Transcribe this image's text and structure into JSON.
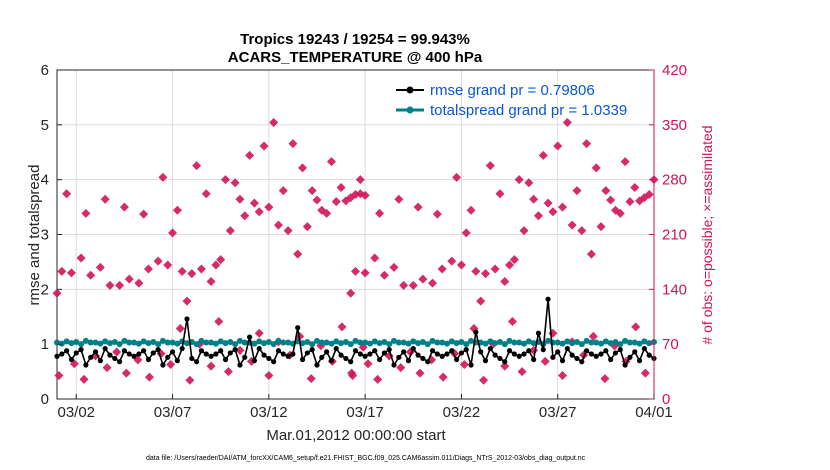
{
  "colors": {
    "rmse": "#000000",
    "spread": "#00808a",
    "obs": "#d1135a",
    "legend_text": "#0a57d0",
    "grid": "#dcdcdc"
  },
  "footer": "data file: /Users/raeder/DAI/ATM_forcXX/CAM6_setup/f.e21.FHIST_BGC.f09_025.CAM6assim.011/Diags_NTrS_2012-03/obs_diag_output.nc",
  "chart_data": {
    "type": "line",
    "title_line1": "Tropics 19243 / 19254 = 99.943%",
    "title_line2": "ACARS_TEMPERATURE @ 400 hPa",
    "xlabel": "Mar.01,2012 00:00:00 start",
    "ylabel": "rmse and totalspread",
    "ylabel_right": "# of obs: o=possible; ×=assimilated",
    "x_range": [
      0,
      31
    ],
    "ylim": [
      0,
      6
    ],
    "ylim_right": [
      0,
      420
    ],
    "x_ticks": [
      {
        "x": 1,
        "label": "03/02"
      },
      {
        "x": 6,
        "label": "03/07"
      },
      {
        "x": 11,
        "label": "03/12"
      },
      {
        "x": 16,
        "label": "03/17"
      },
      {
        "x": 21,
        "label": "03/22"
      },
      {
        "x": 26,
        "label": "03/27"
      },
      {
        "x": 31,
        "label": "04/01"
      }
    ],
    "y_ticks": [
      "0",
      "1",
      "2",
      "3",
      "4",
      "5",
      "6"
    ],
    "y_ticks_right": [
      "0",
      "70",
      "140",
      "210",
      "280",
      "350",
      "420"
    ],
    "legend": [
      {
        "name": "rmse grand pr = 0.79806",
        "color": "#000000"
      },
      {
        "name": "totalspread grand pr = 1.0339",
        "color": "#00808a"
      }
    ],
    "rmse_base": [
      0.78,
      0.82,
      0.88,
      0.72,
      0.84,
      0.9,
      0.62,
      0.76,
      0.86,
      0.7,
      0.92,
      0.8,
      0.74,
      0.68,
      0.88,
      0.82
    ],
    "rmse_spikes": [
      {
        "x": 6.75,
        "y": 1.46
      },
      {
        "x": 10.0,
        "y": 1.13
      },
      {
        "x": 12.5,
        "y": 1.3
      },
      {
        "x": 21.75,
        "y": 1.22
      },
      {
        "x": 25.5,
        "y": 1.82
      },
      {
        "x": 25.0,
        "y": 1.2
      }
    ],
    "spread_base": [
      1.03,
      1.01,
      1.05,
      1.02,
      1.04,
      1.0,
      1.06,
      1.03
    ],
    "obs_counts": [
      {
        "x": 0.0,
        "n": 135
      },
      {
        "x": 0.25,
        "n": 163
      },
      {
        "x": 0.5,
        "n": 262
      },
      {
        "x": 0.75,
        "n": 161
      },
      {
        "x": 1.25,
        "n": 180
      },
      {
        "x": 1.5,
        "n": 237
      },
      {
        "x": 1.75,
        "n": 158
      },
      {
        "x": 2.25,
        "n": 168
      },
      {
        "x": 2.5,
        "n": 255
      },
      {
        "x": 2.75,
        "n": 145
      },
      {
        "x": 3.25,
        "n": 145
      },
      {
        "x": 3.5,
        "n": 245
      },
      {
        "x": 3.75,
        "n": 153
      },
      {
        "x": 4.25,
        "n": 148
      },
      {
        "x": 4.5,
        "n": 236
      },
      {
        "x": 4.75,
        "n": 166
      },
      {
        "x": 5.25,
        "n": 176
      },
      {
        "x": 5.5,
        "n": 283
      },
      {
        "x": 5.75,
        "n": 171
      },
      {
        "x": 6.0,
        "n": 212
      },
      {
        "x": 6.25,
        "n": 241
      },
      {
        "x": 6.5,
        "n": 163
      },
      {
        "x": 6.75,
        "n": 125
      },
      {
        "x": 7.0,
        "n": 160
      },
      {
        "x": 7.25,
        "n": 298
      },
      {
        "x": 7.5,
        "n": 166
      },
      {
        "x": 7.75,
        "n": 262
      },
      {
        "x": 8.0,
        "n": 150
      },
      {
        "x": 8.25,
        "n": 171
      },
      {
        "x": 8.5,
        "n": 178
      },
      {
        "x": 8.75,
        "n": 280
      },
      {
        "x": 9.0,
        "n": 215
      },
      {
        "x": 9.25,
        "n": 276
      },
      {
        "x": 9.5,
        "n": 255
      },
      {
        "x": 9.75,
        "n": 234
      },
      {
        "x": 10.0,
        "n": 311
      },
      {
        "x": 10.25,
        "n": 250
      },
      {
        "x": 10.5,
        "n": 239
      },
      {
        "x": 10.75,
        "n": 323
      },
      {
        "x": 11.0,
        "n": 245
      },
      {
        "x": 11.25,
        "n": 353
      },
      {
        "x": 11.5,
        "n": 222
      },
      {
        "x": 11.75,
        "n": 266
      },
      {
        "x": 12.0,
        "n": 215
      },
      {
        "x": 12.25,
        "n": 326
      },
      {
        "x": 12.5,
        "n": 185
      },
      {
        "x": 12.75,
        "n": 295
      },
      {
        "x": 13.0,
        "n": 220
      },
      {
        "x": 13.25,
        "n": 266
      },
      {
        "x": 13.5,
        "n": 254
      },
      {
        "x": 13.75,
        "n": 241
      },
      {
        "x": 14.0,
        "n": 237
      },
      {
        "x": 14.25,
        "n": 303
      },
      {
        "x": 14.5,
        "n": 252
      },
      {
        "x": 14.75,
        "n": 270
      },
      {
        "x": 15.0,
        "n": 253
      },
      {
        "x": 15.25,
        "n": 257
      },
      {
        "x": 15.5,
        "n": 261
      },
      {
        "x": 15.75,
        "n": 280
      },
      {
        "x": 16.0,
        "n": 260
      }
    ],
    "obs_extra": [
      {
        "x": 0.1,
        "n": 30
      },
      {
        "x": 0.9,
        "n": 45
      },
      {
        "x": 1.4,
        "n": 25
      },
      {
        "x": 2.0,
        "n": 55
      },
      {
        "x": 2.6,
        "n": 40
      },
      {
        "x": 3.1,
        "n": 60
      },
      {
        "x": 3.6,
        "n": 33
      },
      {
        "x": 4.2,
        "n": 50
      },
      {
        "x": 4.8,
        "n": 28
      },
      {
        "x": 5.4,
        "n": 58
      },
      {
        "x": 5.9,
        "n": 44
      },
      {
        "x": 6.4,
        "n": 90
      },
      {
        "x": 6.9,
        "n": 24
      },
      {
        "x": 7.4,
        "n": 70
      },
      {
        "x": 8.0,
        "n": 42
      },
      {
        "x": 8.4,
        "n": 99
      },
      {
        "x": 8.9,
        "n": 35
      },
      {
        "x": 9.5,
        "n": 62
      },
      {
        "x": 10.1,
        "n": 48
      },
      {
        "x": 10.5,
        "n": 84
      },
      {
        "x": 11.0,
        "n": 30
      },
      {
        "x": 11.5,
        "n": 73
      },
      {
        "x": 12.1,
        "n": 56
      },
      {
        "x": 12.6,
        "n": 80
      },
      {
        "x": 13.2,
        "n": 26
      },
      {
        "x": 13.7,
        "n": 68
      },
      {
        "x": 14.3,
        "n": 48
      },
      {
        "x": 14.8,
        "n": 92
      },
      {
        "x": 15.3,
        "n": 33
      },
      {
        "x": 15.9,
        "n": 66
      }
    ]
  }
}
